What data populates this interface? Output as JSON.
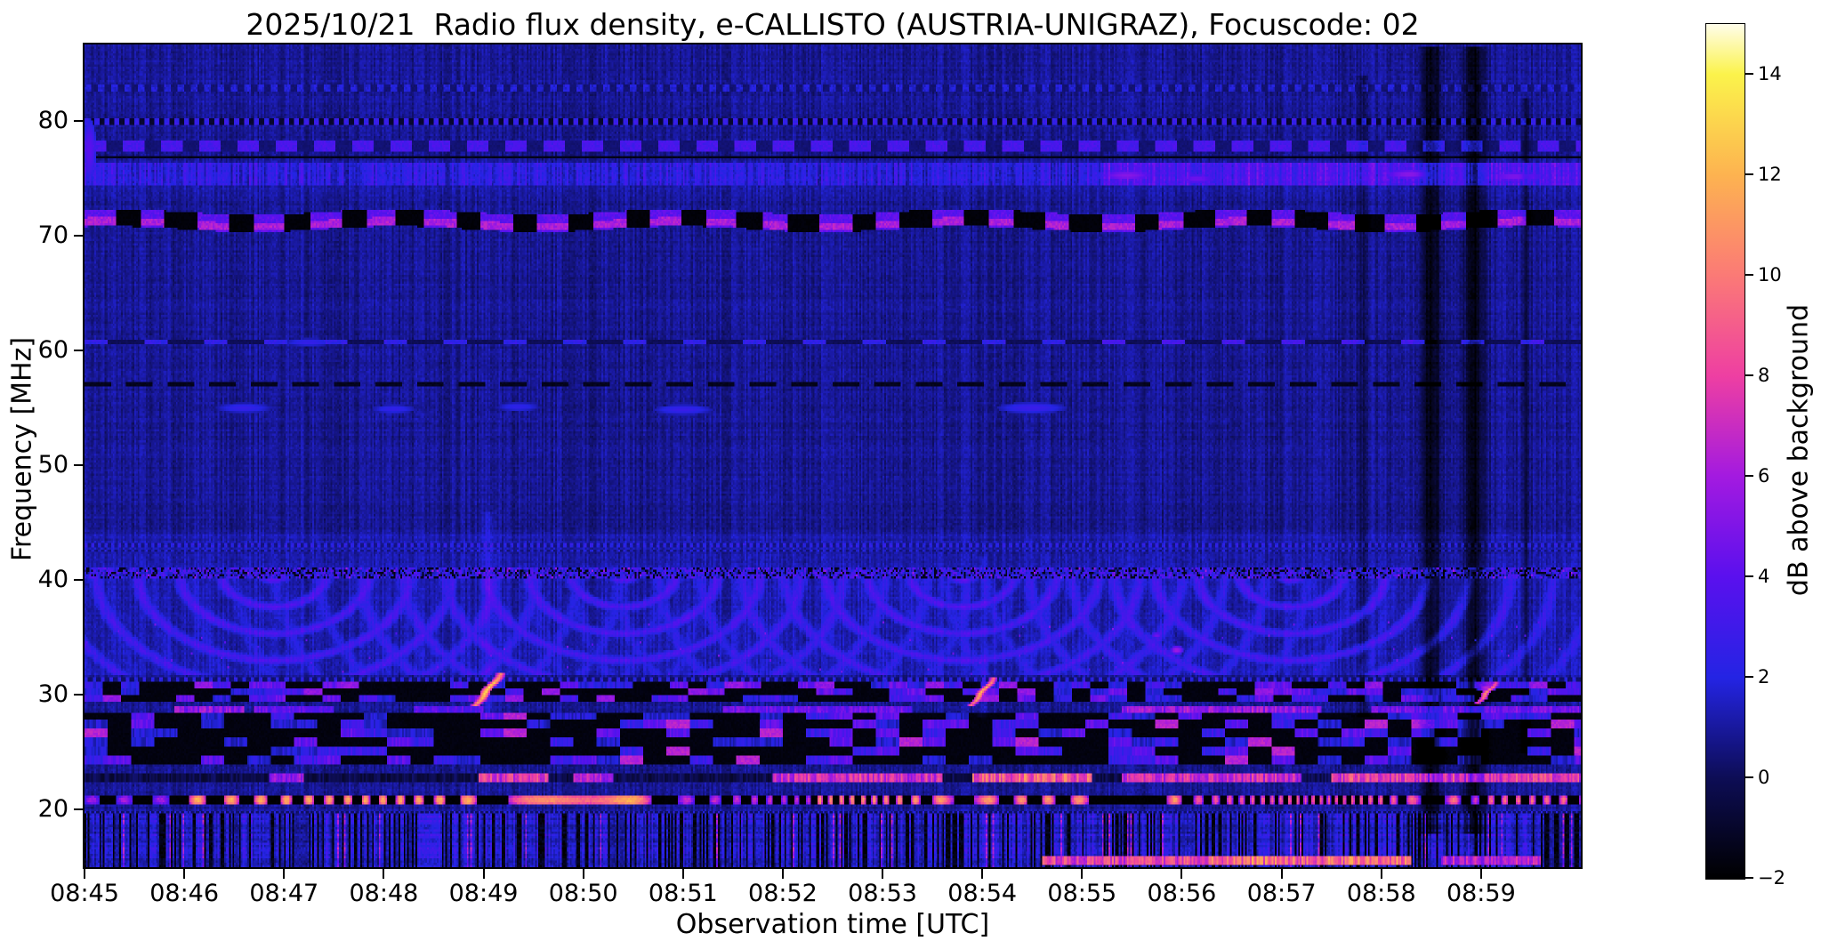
{
  "title": "2025/10/21  Radio flux density, e-CALLISTO (AUSTRIA-UNIGRAZ), Focuscode: 02",
  "axes": {
    "x": {
      "label": "Observation time [UTC]",
      "tick_labels": [
        "08:45",
        "08:46",
        "08:47",
        "08:48",
        "08:49",
        "08:50",
        "08:51",
        "08:52",
        "08:53",
        "08:54",
        "08:55",
        "08:56",
        "08:57",
        "08:58",
        "08:59"
      ],
      "start_utc": "08:45:00",
      "end_utc": "09:00:00"
    },
    "y": {
      "label": "Frequency [MHz]",
      "tick_values": [
        20,
        30,
        40,
        50,
        60,
        70,
        80
      ],
      "range_mhz": [
        15.0,
        86.7
      ]
    }
  },
  "colorbar": {
    "label": "dB above background",
    "tick_values": [
      -2,
      0,
      2,
      4,
      6,
      8,
      10,
      12,
      14
    ],
    "tick_labels": [
      "−2",
      "0",
      "2",
      "4",
      "6",
      "8",
      "10",
      "12",
      "14"
    ],
    "range": [
      -2,
      15
    ],
    "stops": [
      [
        -2,
        "#000000"
      ],
      [
        0,
        "#0d0d55"
      ],
      [
        2,
        "#2424e4"
      ],
      [
        4,
        "#5a10ee"
      ],
      [
        6,
        "#a31ae0"
      ],
      [
        8,
        "#ee3fa2"
      ],
      [
        10,
        "#fb7a76"
      ],
      [
        12,
        "#fdb350"
      ],
      [
        14,
        "#fbf34b"
      ],
      [
        15,
        "#fffdea"
      ]
    ]
  },
  "chart_data": {
    "type": "heatmap",
    "title": "2025/10/21  Radio flux density, e-CALLISTO (AUSTRIA-UNIGRAZ), Focuscode: 02",
    "xlabel": "Observation time [UTC]",
    "ylabel": "Frequency [MHz]",
    "x_range_utc": [
      "08:45:00",
      "09:00:00"
    ],
    "x_span_minutes": 15,
    "y_range_mhz": [
      15.0,
      86.7
    ],
    "value_range_db": [
      -2,
      15
    ],
    "bg": {
      "base": 0.85,
      "col_var": 0.5,
      "row_var": 0.15,
      "pix_var": 0.55,
      "regions": [
        {
          "f0": 31.8,
          "f1": 44.0,
          "add": 0.35
        },
        {
          "f0": 15.0,
          "f1": 20.0,
          "add": 0.15
        },
        {
          "f0": 73.5,
          "f1": 76.5,
          "add": 0.25
        },
        {
          "f0": 80.5,
          "f1": 86.7,
          "add": 0.05
        }
      ]
    },
    "features": [
      {
        "type": "dotrow",
        "f": 82.9,
        "hw": 0.22,
        "period": 8,
        "hi": 1.8,
        "lo": 0.4
      },
      {
        "type": "dotrow",
        "f": 80.0,
        "hw": 0.3,
        "period": 6,
        "hi": 2.6,
        "lo": -0.9
      },
      {
        "type": "dashrow",
        "f0": 77.4,
        "f1": 78.3,
        "on": 13,
        "off": 10,
        "val": 3.3,
        "gap": 0.4
      },
      {
        "type": "darkrow",
        "f0": 76.7,
        "f1": 77.0,
        "val": -1.4
      },
      {
        "type": "texband",
        "f0": 74.4,
        "f1": 76.3,
        "add": 1.1,
        "var": 1.2,
        "boost_t": 10.2,
        "boost": 1.3
      },
      {
        "type": "blobdash",
        "f0": 70.6,
        "f1": 72.1,
        "period": 34,
        "duty": 0.5,
        "hi": 4.0,
        "lo": -1.9,
        "coref": 71.05,
        "corehw": 0.33,
        "coreval": 6.2,
        "wob": 0.25
      },
      {
        "type": "dashrow",
        "f0": 60.5,
        "f1": 61.0,
        "on": 14,
        "off": 22,
        "val": 2.4,
        "gap": 0,
        "boost_t": 10.0,
        "boost": 0.8
      },
      {
        "type": "darkdash",
        "f0": 56.8,
        "f1": 57.35,
        "on": 16,
        "off": 9,
        "val": -1.3
      },
      {
        "type": "dotrow",
        "f": 43.0,
        "hw": 0.18,
        "period": 4,
        "hi": 2.2,
        "lo": 0.6
      },
      {
        "type": "dotrow",
        "f": 42.55,
        "hw": 0.13,
        "period": 4,
        "hi": 1.7,
        "lo": 0.5
      },
      {
        "type": "noisyband",
        "f0": 40.15,
        "f1": 41.05,
        "add": 2.5,
        "var": 1.7,
        "black_p": 0.25,
        "bright_p": 0.015,
        "bright": 5.2
      },
      {
        "type": "rings",
        "f0": 31.8,
        "f1": 40.1,
        "fc": 40.6,
        "centers": [
          1.9,
          5.4,
          8.8,
          12.1
        ],
        "st": 1.0,
        "sf": 0.18,
        "lam": 0.42,
        "amp": 1.35,
        "rmax": 3.6
      },
      {
        "type": "specks",
        "f0": 31.8,
        "f1": 36.5,
        "p": 0.004,
        "vmin": 3.2,
        "vmax": 5.2
      },
      {
        "type": "dotrow",
        "f": 31.4,
        "hw": 0.14,
        "period": 5,
        "hi": 2.2,
        "lo": 0.3
      },
      {
        "type": "mosaic",
        "f0": 29.4,
        "f1": 31.25,
        "cs": 11,
        "cf": 0.62,
        "black_p": 0.46,
        "vals": [
          2.2,
          3.2,
          4.3
        ],
        "bright_p": 0.1,
        "bright": 5.5
      },
      {
        "type": "segrow",
        "f0": 28.4,
        "f1": 28.95,
        "stripe": 1,
        "segs": [
          {
            "t0": 0.9,
            "t1": 1.6,
            "val": 5.4
          },
          {
            "t0": 1.7,
            "t1": 2.5,
            "val": 4.2
          },
          {
            "t0": 3.3,
            "t1": 4.0,
            "val": 3.8
          },
          {
            "t0": 6.4,
            "t1": 8.3,
            "val": 4.4
          },
          {
            "t0": 10.4,
            "t1": 12.4,
            "val": 5.6
          },
          {
            "t0": 12.9,
            "t1": 15,
            "val": 4.8
          }
        ]
      },
      {
        "type": "mosaic",
        "f0": 23.9,
        "f1": 28.35,
        "cs": 14,
        "cf": 0.8,
        "black_p": 0.52,
        "vals": [
          1.8,
          2.8,
          4.0
        ],
        "bright_p": 0.05,
        "bright": 6.5
      },
      {
        "type": "segrow",
        "f0": 22.4,
        "f1": 23.2,
        "stripe": 1,
        "bgv": -1.0,
        "segs": [
          {
            "t0": 1.85,
            "t1": 2.2,
            "val": 5.5
          },
          {
            "t0": 3.95,
            "t1": 4.65,
            "val": 7.5
          },
          {
            "t0": 4.9,
            "t1": 5.3,
            "val": 6.2
          },
          {
            "t0": 6.9,
            "t1": 8.6,
            "val": 7.2
          },
          {
            "t0": 8.9,
            "t1": 10.1,
            "val": 9.0
          },
          {
            "t0": 10.4,
            "t1": 12.2,
            "val": 7.0
          },
          {
            "t0": 12.5,
            "t1": 15,
            "val": 7.8
          }
        ]
      },
      {
        "type": "hotdash",
        "f0": 20.4,
        "f1": 21.3,
        "period": 18,
        "duty": 0.48,
        "lo": -2,
        "segs": [
          {
            "t0": 0,
            "t1": 0.9,
            "val": 6.5
          },
          {
            "t0": 0.9,
            "t1": 5.8,
            "val": 12.3
          },
          {
            "t0": 5.8,
            "t1": 7.3,
            "val": 7.5
          },
          {
            "t0": 7.3,
            "t1": 11.0,
            "val": 11.5
          },
          {
            "t0": 11.0,
            "t1": 12.8,
            "val": 9.5
          },
          {
            "t0": 12.8,
            "t1": 15,
            "val": 10.0
          }
        ]
      },
      {
        "type": "dotrow",
        "f": 19.75,
        "hw": 0.11,
        "period": 3,
        "hi": 2.0,
        "lo": 0.2
      },
      {
        "type": "vstreaks",
        "f0": 15.0,
        "f1": 19.6,
        "black_p": 0.3,
        "base": 1.3,
        "var": 1.4,
        "pink_p": 0.03,
        "pink": 5.5
      },
      {
        "type": "segrow",
        "f0": 15.1,
        "f1": 16.0,
        "stripe": 1,
        "segs": [
          {
            "t0": 9.6,
            "t1": 11.3,
            "val": 8.0
          },
          {
            "t0": 11.3,
            "t1": 13.3,
            "val": 9.5
          },
          {
            "t0": 13.6,
            "t1": 14.6,
            "val": 6.5
          }
        ]
      },
      {
        "type": "spots",
        "items": [
          {
            "t": 0.05,
            "f": 77.5,
            "rt": 0.07,
            "rf": 2.8,
            "val": 4.0
          },
          {
            "t": 1.6,
            "f": 55.0,
            "rt": 0.28,
            "rf": 0.45,
            "val": 2.6
          },
          {
            "t": 3.1,
            "f": 54.9,
            "rt": 0.22,
            "rf": 0.4,
            "val": 2.5
          },
          {
            "t": 4.35,
            "f": 55.1,
            "rt": 0.22,
            "rf": 0.4,
            "val": 2.4
          },
          {
            "t": 6.0,
            "f": 54.85,
            "rt": 0.3,
            "rf": 0.45,
            "val": 2.7
          },
          {
            "t": 9.5,
            "f": 55.0,
            "rt": 0.35,
            "rf": 0.5,
            "val": 2.8
          },
          {
            "t": 2.25,
            "f": 60.75,
            "rt": 0.25,
            "rf": 0.35,
            "val": 2.6
          },
          {
            "t": 10.45,
            "f": 75.3,
            "rt": 0.3,
            "rf": 0.55,
            "val": 5.2
          },
          {
            "t": 11.15,
            "f": 75.0,
            "rt": 0.22,
            "rf": 0.45,
            "val": 4.6
          },
          {
            "t": 13.3,
            "f": 75.4,
            "rt": 0.3,
            "rf": 0.5,
            "val": 5.4
          },
          {
            "t": 14.35,
            "f": 75.2,
            "rt": 0.3,
            "rf": 0.5,
            "val": 5.0
          },
          {
            "t": 10.95,
            "f": 33.9,
            "rt": 0.07,
            "rf": 0.4,
            "val": 6.0
          },
          {
            "t": 10.75,
            "f": 35.2,
            "rt": 0.06,
            "rf": 0.3,
            "val": 4.6
          },
          {
            "t": 14.05,
            "f": 30.6,
            "rt": 0.1,
            "rf": 0.3,
            "val": 7.5
          }
        ]
      },
      {
        "type": "lanes",
        "items": [
          {
            "t": 12.82,
            "w": 0.045,
            "f0": 28,
            "f1": 84,
            "sub": 1.1
          },
          {
            "t": 13.5,
            "w": 0.1,
            "f0": 18,
            "f1": 86.5,
            "sub": 2.4
          },
          {
            "t": 13.93,
            "w": 0.1,
            "f0": 18,
            "f1": 86.5,
            "sub": 2.4
          },
          {
            "t": 14.45,
            "w": 0.04,
            "f0": 25,
            "f1": 82,
            "sub": 1.2
          }
        ]
      },
      {
        "type": "glowcols",
        "items": [
          {
            "t": 4.05,
            "f0": 28,
            "f1": 46,
            "w": 0.06,
            "add": 0.8
          },
          {
            "t": 9.0,
            "f0": 28,
            "f1": 42,
            "w": 0.05,
            "add": 0.6
          }
        ]
      },
      {
        "type": "bursts",
        "items": [
          {
            "t0": 3.93,
            "f0": 29.2,
            "t1": 4.16,
            "f1": 31.7,
            "w": 0.05,
            "val": 13.8
          },
          {
            "t0": 8.9,
            "f0": 29.2,
            "t1": 9.1,
            "f1": 31.3,
            "w": 0.042,
            "val": 12.5
          },
          {
            "t0": 13.98,
            "f0": 29.4,
            "t1": 14.14,
            "f1": 31.0,
            "w": 0.04,
            "val": 11.0
          }
        ]
      }
    ]
  }
}
